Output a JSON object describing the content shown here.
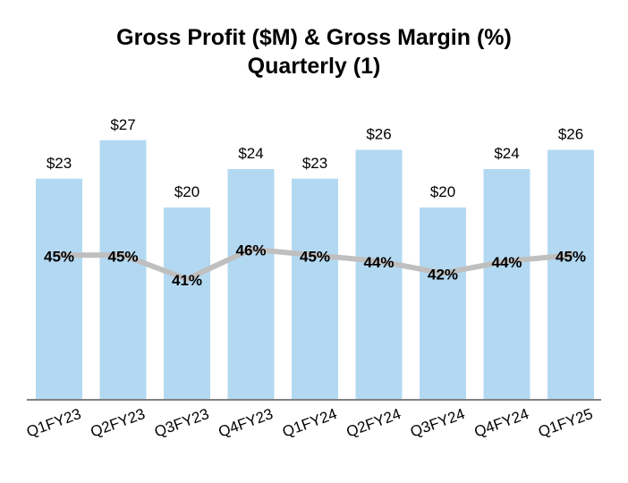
{
  "chart_data": {
    "type": "bar",
    "title": "Gross Profit ($M) & Gross Margin (%)",
    "subtitle": "Quarterly (1)",
    "categories": [
      "Q1FY23",
      "Q2FY23",
      "Q3FY23",
      "Q4FY23",
      "Q1FY24",
      "Q2FY24",
      "Q3FY24",
      "Q4FY24",
      "Q1FY25"
    ],
    "series": [
      {
        "type": "bar",
        "values": [
          23,
          27,
          20,
          24,
          23,
          26,
          20,
          24,
          26
        ],
        "labels": [
          "$23",
          "$27",
          "$20",
          "$24",
          "$23",
          "$26",
          "$20",
          "$24",
          "$26"
        ],
        "color": "#b3d9f2"
      },
      {
        "type": "line",
        "values": [
          45,
          45,
          41,
          46,
          45,
          44,
          42,
          44,
          45
        ],
        "labels": [
          "45%",
          "45%",
          "41%",
          "46%",
          "45%",
          "44%",
          "42%",
          "44%",
          "45%"
        ],
        "color": "#bfbfbf"
      }
    ],
    "ylim": [
      0,
      30
    ],
    "grid": false,
    "legend": "none",
    "axis_color": "#808080"
  }
}
